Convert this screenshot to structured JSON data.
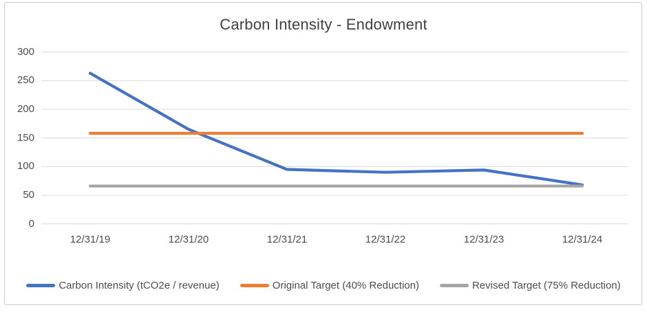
{
  "chart_data": {
    "type": "line",
    "title": "Carbon Intensity - Endowment",
    "categories": [
      "12/31/19",
      "12/31/20",
      "12/31/21",
      "12/31/22",
      "12/31/23",
      "12/31/24"
    ],
    "series": [
      {
        "name": "Carbon Intensity (tCO2e / revenue)",
        "color": "#4472C4",
        "values": [
          263,
          165,
          95,
          90,
          94,
          68
        ]
      },
      {
        "name": "Original Target (40% Reduction)",
        "color": "#ED7D31",
        "values": [
          158,
          158,
          158,
          158,
          158,
          158
        ]
      },
      {
        "name": "Revised Target (75% Reduction)",
        "color": "#A5A5A5",
        "values": [
          66,
          66,
          66,
          66,
          66,
          66
        ]
      }
    ],
    "yticks": [
      0,
      50,
      100,
      150,
      200,
      250,
      300
    ],
    "ylim": [
      0,
      300
    ],
    "xlabel": "",
    "ylabel": "",
    "grid": true,
    "legend_position": "bottom",
    "gridline_color": "#D9D9D9",
    "axis_text_color": "#4c4c4c",
    "title_color": "#3f3f3f"
  }
}
